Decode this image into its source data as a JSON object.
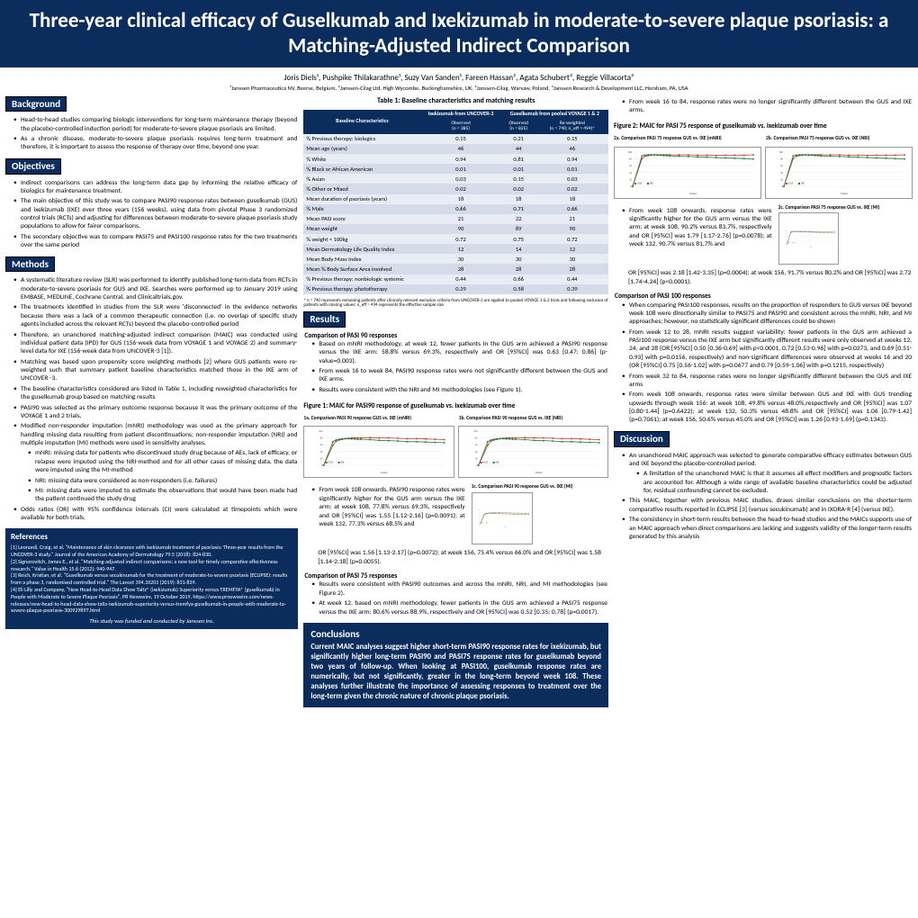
{
  "title": "Three-year clinical efficacy of Guselkumab and Ixekizumab in moderate-to-severe plaque psoriasis: a Matching-Adjusted Indirect Comparison",
  "authors": "Joris Diels¹, Pushpike Thilakarathne¹, Suzy Van Sanden¹, Fareen Hassan², Agata Schubert³, Reggie Villacorta⁴",
  "affiliations": "¹Janssen Pharmaceutica NV, Beerse, Belgium, ²Janssen-Cilag Ltd, High Wycombe, Buckinghamshire, UK, ³Janssen-Cilag, Warsaw, Poland, ⁴Janssen Research & Development LLC, Horsham, PA, USA",
  "sections": {
    "background": "Background",
    "objectives": "Objectives",
    "methods": "Methods",
    "references": "References",
    "results": "Results",
    "discussion": "Discussion",
    "conclusions": "Conclusions"
  },
  "bg": {
    "b1": "Head-to-head studies comparing biologic interventions for long-term maintenance therapy (beyond the placebo-controlled induction period) for moderate-to-severe plaque psoriasis are limited.",
    "b2": "As a chronic disease, moderate-to-severe plaque psoriasis requires long-term treatment and therefore, it is important to assess the response of therapy over time, beyond one year."
  },
  "obj": {
    "o1": "Indirect comparisons can address the long-term data gap by informing the relative efficacy of biologics for maintenance treatment.",
    "o2": "The main objective of this study was to compare PASI90 response rates between guselkumab (GUS) and ixekizumab (IXE) over three years (156 weeks), using data from pivotal Phase 3 randomized control trials (RCTs) and adjusting for differences between moderate-to-severe plaque psoriasis study populations to allow for fairer comparisons.",
    "o3": "The secondary objective was to compare PASI75 and PASI100 response rates for the two treatments over the same period"
  },
  "meth": {
    "m1": "A systematic literature review (SLR) was performed to identify published long-term data from RCTs in moderate-to-severe psoriasis for GUS and IXE. Searches were performed up to January 2019 using EMBASE, MEDLINE, Cochrane Central, and Clinicaltrials.gov.",
    "m2": "The treatments identified in studies from the SLR were 'disconnected' in the evidence networks because there was a lack of a common therapeutic connection (i.e. no overlap of specific study agents included across the relevant RCTs) beyond the placebo-controlled period",
    "m3": "Therefore, an unanchored matching-adjusted indirect comparison (MAIC) was conducted using individual patient data (IPD) for GUS (156-week data from VOYAGE 1 and VOYAGE 2) and summary-level data for IXE (156-week data from UNCOVER-3 [1]).",
    "m4": "Matching was based upon propensity score weighting methods [2] where GUS patients were re-weighted such that summary patient baseline characteristics matched those in the IXE arm of UNCOVER -3.",
    "m5": "The baseline characteristics considered are listed in Table 1, including reweighted characteristics for the guselkumab group based on matching results",
    "m6": "PASI90 was selected as the primary outcome response because it was the primary outcome of the VOYAGE 1 and 2 trials.",
    "m7": "Modified non-responder imputation (mNRI) methodology was used as the primary approach for handling missing data resulting from patient discontinuations; non-responder imputation (NRI) and multiple imputation (MI) methods were used in sensitivity analyses.",
    "m7a": "mNRI: missing data for patients who discontinued study drug because of AEs, lack of efficacy, or relapse were imputed using the NRI-method and for all other cases of missing data, the data were imputed using the MI-method",
    "m7b": "NRI: missing data were considered as non-responders (i.e. failures)",
    "m7c": "MI: missing data were imputed to estimate the observations that would have been made had the patient continued the study drug",
    "m8": "Odds ratios (OR) with 95% confidence intervals (CI) were calculated at timepoints which were available for both trials."
  },
  "refs": {
    "r1": "[1] Leonardi, Craig, et al. \"Maintenance of skin clearance with ixekizumab treatment of psoriasis: Three-year results from the UNCOVER-3 study.\" Journal of the American Academy of Dermatology 79.5 (2018): 824-830.",
    "r2": "[2] Signorovitch, James E., et al. \"Matching-adjusted indirect comparisons: a new tool for timely comparative effectiveness research.\" Value in Health 15.6 (2012): 940-947.",
    "r3": "[3] Reich, Kristian, et al. \"Guselkumab versus secukinumab for the treatment of moderate-to-severe psoriasis (ECLIPSE): results from a phase 3, randomised controlled trial.\" The Lancet 394.10201 (2019): 831-839.",
    "r4": "[4] Eli Lilly and Company, \"New Head-to-Head Data Show Taltz® (ixekizumab) Superiority versus TREMFYA® (guselkumab) in People with Moderate to Severe Plaque Psoriasis\", PR Newswire, 19 October 2019, https://www.prnewswire.com/news-releases/new-head-to-head-data-show-taltz-ixekizumab-superiority-versus-tremfya-guselkumab-in-people-with-moderate-to-severe-plaque-psoriasis-300929897.html",
    "funding": "This study was funded and conducted by Janssen Inc."
  },
  "table1": {
    "title": "Table 1: Baseline characteristics and matching results",
    "hdr_ixe": "Ixekizumab from UNCOVER-3",
    "hdr_gus": "Guselkumab from pooled VOYAGE 1 & 2",
    "hdr_bc": "Baseline Characteristics",
    "sub_obs1": "Observed",
    "sub_n1": "(n = 385)",
    "sub_obs2": "Observed",
    "sub_n2": "(n = 825)",
    "sub_rw": "Re-weighted",
    "sub_n3": "(n = 740; n_eff = 494)*",
    "rows": [
      [
        "% Previous therapy: biologics",
        "0.15",
        "0.21",
        "0.15"
      ],
      [
        "Mean age (years)",
        "46",
        "44",
        "46"
      ],
      [
        "% White",
        "0.94",
        "0.81",
        "0.94"
      ],
      [
        "% Black or African American",
        "0.01",
        "0.01",
        "0.01"
      ],
      [
        "% Asian",
        "0.03",
        "0.15",
        "0.03"
      ],
      [
        "% Other or Mixed",
        "0.02",
        "0.02",
        "0.02"
      ],
      [
        "Mean duration of psoriasis (years)",
        "18",
        "18",
        "18"
      ],
      [
        "% Male",
        "0.66",
        "0.71",
        "0.66"
      ],
      [
        "Mean PASI score",
        "21",
        "22",
        "21"
      ],
      [
        "Mean weight",
        "90",
        "89",
        "90"
      ],
      [
        "% weight < 100kg",
        "0.72",
        "0.75",
        "0.72"
      ],
      [
        "Mean Dermatology Life Quality Index",
        "12",
        "14",
        "12"
      ],
      [
        "Mean Body Mass Index",
        "30",
        "30",
        "30"
      ],
      [
        "Mean % Body Surface Area involved",
        "28",
        "28",
        "28"
      ],
      [
        "% Previous therapy: nonbiologic systemic",
        "0.44",
        "0.66",
        "0.44"
      ],
      [
        "% Previous therapy: phototherapy",
        "0.39",
        "0.58",
        "0.39"
      ]
    ],
    "note": "* n = 740 represents remaining patients after clinically relevant exclusion criteria from UNCOVER-3 are applied to pooled VOYAGE 1 & 2 trials and following exclusion of patients with missing values; n_eff = 494 represents the effective sample size"
  },
  "res": {
    "sub90": "Comparison of PASI 90 responses",
    "r90_1": "Based on mNRI methodology, at week 12, fewer patients in the GUS arm achieved a PASI90 response versus the IXE arm: 58.8% versus 69.3%, respectively and OR [95%CI] was 0.63 [0.47; 0.86] (p-value=0.003).",
    "r90_2": "From week 16 to week 84, PASI90 response rates were not significantly different between the GUS and IXE arms.",
    "r90_3": "Results were consistent with the NRI and MI methodologies (see Figure 1).",
    "fig1": "Figure 1: MAIC for PASI90 response of guselkumab vs. ixekizumab over time",
    "f1a": "1a. Comparison PASI 90 response GUS vs. IXE (mNRI)",
    "f1b": "1b. Comparison PASI 90 response GUS vs. IXE (NRI)",
    "f1c": "1c. Comparison PASI 90 response GUS vs. IXE (MI)",
    "r90_4": "From week 108 onwards, PASI90 response rates were significantly higher for the GUS arm versus the IXE arm: at week 108, 77.8% versus 69.3%, respectively and OR [95%CI] was 1.55 [1.12-2.16] (p=0.0091); at week 132, 77.3% versus 68.5% and",
    "r90_5": "OR [95%CI] was 1.56 [1.13-2.17] (p=0.0072); at week 156, 75.4% versus 66.0% and OR [95%CI] was 1.58 [1.14-2.18] (p=0.0055).",
    "sub75": "Comparison of PASI 75 responses",
    "r75_1": "Results were consistent with PASI90 outcomes and across the mNRI, NRI, and MI methodologies (see Figure 2).",
    "r75_2": "At week 12, based on mNRI methodology, fewer patients in the GUS arm achieved a PASI75 response versus the IXE arm: 80.6% versus 88.9%, respectively and OR [95%CI] was 0.52 [0.35; 0.78] (p=0.0017).",
    "r75_3": "From week 16 to 84, response rates were no longer significantly different between the GUS and IXE arms.",
    "fig2": "Figure 2: MAIC for PASI 75 response of guselkumab vs. ixekizumab over time",
    "f2a": "2a. Comparison PASI 75 response GUS vs. IXE (mNRI)",
    "f2b": "2b. Comparison PASI 75 response GUS vs. IXE (NRI)",
    "f2c": "2c. Comparison PASI 75 response GUS vs. IXE (MI)",
    "r75_4": "From week 108 onwards, response rates were significantly higher for the GUS arm versus the IXE arm: at week 108, 90.2% versus 83.7%, respectively and OR [95%CI] was 1.79 [1.17-2.76] (p=0.0078); at week 132, 90.7% versus 81.7% and",
    "r75_5": "OR [95%CI] was 2.18 [1.42-3.35] (p=0.0004); at week 156, 91.7% versus 80.2% and OR [95%CI] was 2.72 [1.74-4.24] (p<0.0001).",
    "sub100": "Comparison of PASI 100 responses",
    "r100_1": "When comparing PASI100 responses, results on the proportion of responders to GUS versus IXE beyond week 108 were directionally similar to PASI75 and PASI90 and consistent across the mNRI, NRI, and MI approaches; however, no statistically significant differences could be shown",
    "r100_2": "From week 12 to 28, mNRI results suggest variability: fewer patients in the GUS arm achieved a PASI100 response versus the IXE arm but significantly different results were only observed at weeks 12, 24, and 28 (OR [95%CI] 0.50 [0.36-0.69] with p<0.0001, 0.72 [0.53-0.96] with p=0.0273, and 0.69 [0.51-0.93] with p=0.0156, respectively) and non-significant differences were observed at weeks 16 and 20 (OR [95%CI] 0.75 [0.56-1.02] with p=0.0677 and 0.79 [0.59-1.06] with p=0.1215, respectively)",
    "r100_3": "From week 32 to 84, response rates were no longer significantly different between the GUS and IXE arms",
    "r100_4": "From week 108 onwards, response rates were similar between GUS and IXE with GUS trending upwards through week 156: at week 108, 49.8% versus 48.0%,respectively and OR [95%CI] was 1.07 [0.80-1.44] (p=0.6422); at week 132, 50.3% versus 48.8% and OR [95%CI] was 1.06 [0.79-1.42] (p=0.7061); at week 156, 50.6% versus 45.0% and OR [95%CI] was 1.26 [0.93-1.69] (p=0.1343)."
  },
  "disc": {
    "d1": "An unanchored MAIC approach was selected to generate comparative efficacy estimates between GUS and IXE beyond the placebo-controlled period.",
    "d1a": "A limitation of the unanchored MAIC is that it assumes all effect modifiers and prognostic factors are accounted for. Although a wide range of available baseline characteristics could be adjusted for, residual confounding cannot be excluded.",
    "d2": "This MAIC, together with previous MAIC studies, draws similar conclusions on the shorter-term comparative results reported in ECLIPSE [3] (versus secukinumab) and in IXORA-R [4] (versus IXE).",
    "d3": "The consistency in short-term results between the head-to-head studies and the MAICs supports use of an MAIC approach when direct comparisons are lacking and suggests validity of the longer-term results generated by this analysis"
  },
  "concl": "Current MAIC analyses suggest higher short-term PASI90 response rates for ixekizumab, but significantly higher long-term PASI90 and PASI75 response rates for guselkumab beyond two years of follow-up. When looking at PASI100, guselkumab response rates are numerically, but not significantly, greater in the long-term beyond week 108. These analyses further illustrate the importance of assessing responses to treatment over the long-term given the chronic nature of chronic plaque psoriasis.",
  "chart": {
    "colors": {
      "gus": "#c0392b",
      "ixe": "#1a7a3a",
      "axis": "#666",
      "grid": "#ddd"
    },
    "xlabel": "Weeks",
    "ylabel_90": "PASI 90 response rate (%)",
    "ylabel_75": "PASI 75 response rate (%)",
    "ylim": [
      0,
      100
    ],
    "legend": "GUS · IXE",
    "weeks": [
      0,
      12,
      16,
      20,
      24,
      28,
      32,
      36,
      40,
      44,
      48,
      60,
      72,
      84,
      96,
      108,
      120,
      132,
      144,
      156
    ],
    "p90_gus": [
      0,
      59,
      70,
      74,
      76,
      78,
      79,
      80,
      80,
      80,
      80,
      81,
      80,
      80,
      79,
      78,
      78,
      77,
      76,
      75
    ],
    "p90_ixe": [
      0,
      69,
      74,
      76,
      77,
      78,
      78,
      77,
      77,
      76,
      76,
      75,
      73,
      72,
      71,
      69,
      69,
      68,
      67,
      66
    ],
    "p75_gus": [
      0,
      81,
      88,
      90,
      91,
      92,
      92,
      92,
      92,
      92,
      92,
      92,
      92,
      91,
      91,
      90,
      91,
      91,
      91,
      92
    ],
    "p75_ixe": [
      0,
      89,
      91,
      92,
      92,
      92,
      91,
      91,
      90,
      90,
      89,
      88,
      87,
      86,
      85,
      84,
      83,
      82,
      81,
      80
    ]
  }
}
